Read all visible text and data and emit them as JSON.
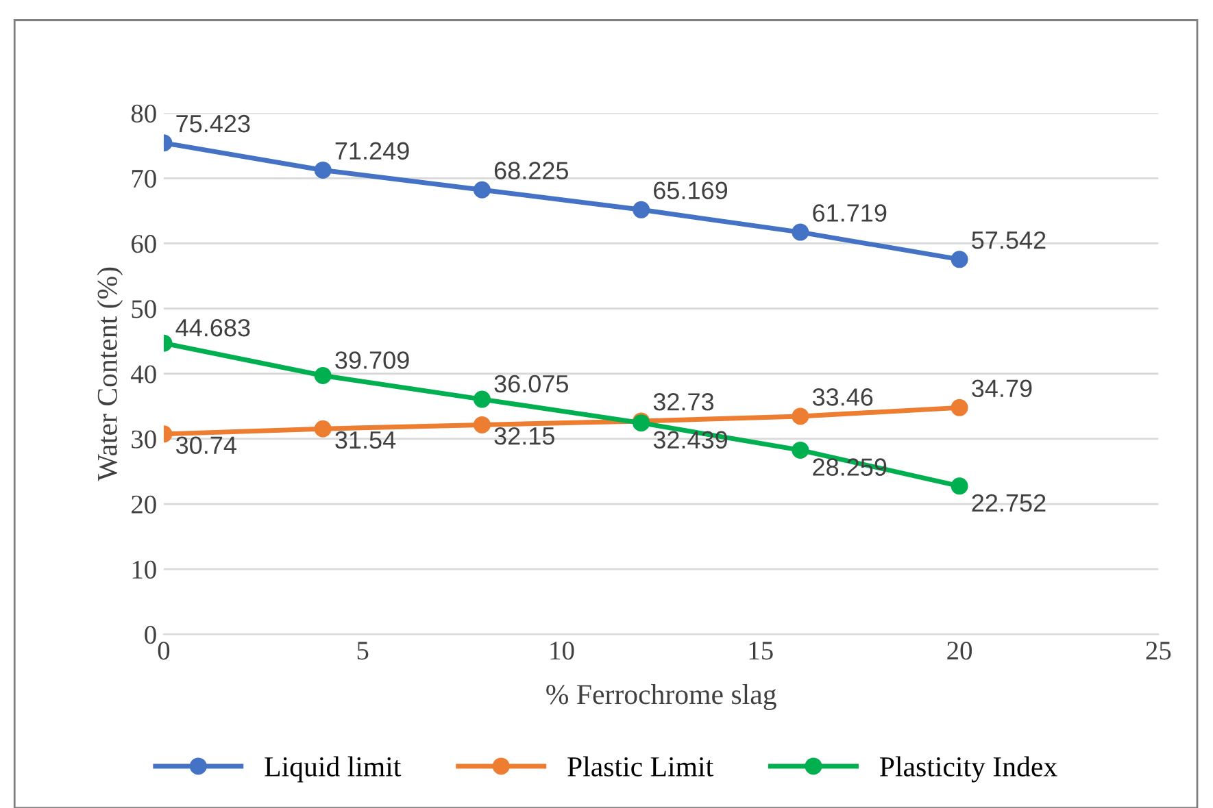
{
  "chart_data": {
    "type": "line",
    "xlabel": "% Ferrochrome slag",
    "ylabel": "Water Content (%)",
    "x": [
      0,
      4,
      8,
      12,
      16,
      20
    ],
    "series": [
      {
        "name": "Liquid limit",
        "color": "#4472c4",
        "values": [
          75.423,
          71.249,
          68.225,
          65.169,
          61.719,
          57.542
        ]
      },
      {
        "name": "Plastic Limit",
        "color": "#ed7d31",
        "values": [
          30.74,
          31.54,
          32.15,
          32.73,
          33.46,
          34.79
        ]
      },
      {
        "name": "Plasticity Index",
        "color": "#00b050",
        "values": [
          44.683,
          39.709,
          36.075,
          32.439,
          28.259,
          22.752
        ]
      }
    ],
    "xlim": [
      0,
      25
    ],
    "xticks": [
      0,
      5,
      10,
      15,
      20,
      25
    ],
    "ylim": [
      0,
      80
    ],
    "yticks": [
      0,
      10,
      20,
      30,
      40,
      50,
      60,
      70,
      80
    ],
    "grid": "y",
    "legend": "bottom",
    "marker": "circle",
    "line_style": "solid",
    "data_labels": true
  }
}
